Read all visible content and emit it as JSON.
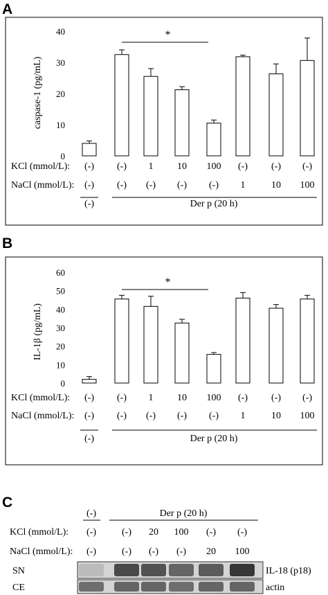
{
  "chart_data": [
    {
      "panel": "A",
      "type": "bar",
      "ylabel": "caspase-1 (pg/mL)",
      "ylim": [
        0,
        40
      ],
      "yticks": [
        "0",
        "10",
        "20",
        "30",
        "40"
      ],
      "values": [
        4,
        32.5,
        25.5,
        21.2,
        10.5,
        31.8,
        26.3,
        30.6
      ],
      "errors": [
        0.8,
        1.5,
        2.5,
        1,
        1,
        0.5,
        3.2,
        7.2
      ],
      "significance": {
        "from": 1,
        "to": 4,
        "label": "*"
      },
      "rows": [
        {
          "label": "KCl (mmol/L):",
          "cells": [
            "(-)",
            "(-)",
            "1",
            "10",
            "100",
            "(-)",
            "(-)",
            "(-)"
          ]
        },
        {
          "label": "NaCl (mmol/L):",
          "cells": [
            "(-)",
            "(-)",
            "(-)",
            "(-)",
            "(-)",
            "1",
            "10",
            "100"
          ]
        }
      ],
      "group_control": "(-)",
      "group_treated": "Der p (20 h)"
    },
    {
      "panel": "B",
      "type": "bar",
      "ylabel": "IL-1β (pg/mL)",
      "ylim": [
        0,
        60
      ],
      "yticks": [
        "0",
        "10",
        "20",
        "30",
        "40",
        "50",
        "60"
      ],
      "values": [
        2,
        45.5,
        41.5,
        32.5,
        15.5,
        46,
        40.5,
        45.5
      ],
      "errors": [
        1.5,
        2,
        5.5,
        2,
        1,
        3,
        2,
        2
      ],
      "significance": {
        "from": 1,
        "to": 4,
        "label": "*"
      },
      "rows": [
        {
          "label": "KCl (mmol/L):",
          "cells": [
            "(-)",
            "(-)",
            "1",
            "10",
            "100",
            "(-)",
            "(-)",
            "(-)"
          ]
        },
        {
          "label": "NaCl (mmol/L):",
          "cells": [
            "(-)",
            "(-)",
            "(-)",
            "(-)",
            "(-)",
            "1",
            "10",
            "100"
          ]
        }
      ],
      "group_control": "(-)",
      "group_treated": "Der p (20 h)"
    }
  ],
  "blot": {
    "panel": "C",
    "group_control": "(-)",
    "group_treated": "Der p (20 h)",
    "rows": [
      {
        "label": "KCl (mmol/L):",
        "cells": [
          "(-)",
          "(-)",
          "20",
          "100",
          "(-)",
          "(-)"
        ]
      },
      {
        "label": "NaCl (mmol/L):",
        "cells": [
          "(-)",
          "(-)",
          "(-)",
          "(-)",
          "20",
          "100"
        ]
      }
    ],
    "bands": [
      {
        "left_label": "SN",
        "right_label": "IL-18 (p18)",
        "intensity": [
          0.15,
          0.75,
          0.7,
          0.6,
          0.65,
          0.85
        ]
      },
      {
        "left_label": "CE",
        "right_label": "actin",
        "intensity": [
          0.55,
          0.6,
          0.6,
          0.55,
          0.6,
          0.6
        ]
      }
    ]
  }
}
